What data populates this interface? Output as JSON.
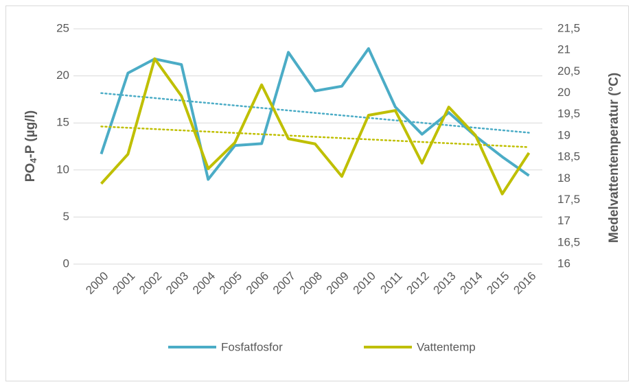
{
  "chart_data": {
    "type": "line",
    "y_label": {
      "main": "PO",
      "sub": "4",
      "rest": "-P (µg/l)"
    },
    "y2_label": "Medelvattentemperatur (°C)",
    "categories": [
      "2000",
      "2001",
      "2002",
      "2003",
      "2004",
      "2005",
      "2006",
      "2007",
      "2008",
      "2009",
      "2010",
      "2011",
      "2012",
      "2013",
      "2014",
      "2015",
      "2016"
    ],
    "series": [
      {
        "name": "Fosfatfosfor",
        "color": "#4bacc6",
        "axis": "y",
        "trendline": true,
        "values": [
          11.7,
          20.3,
          21.8,
          21.2,
          9.0,
          12.6,
          12.8,
          22.5,
          18.4,
          18.9,
          22.9,
          16.7,
          13.8,
          16.1,
          13.6,
          11.4,
          9.4
        ]
      },
      {
        "name": "Vattentemp",
        "color": "#bfbf00",
        "axis": "y2",
        "trendline": true,
        "values": [
          17.88,
          18.57,
          20.8,
          19.93,
          18.23,
          18.84,
          20.19,
          18.93,
          18.81,
          18.05,
          19.48,
          19.59,
          18.36,
          19.67,
          19.01,
          17.64,
          18.6
        ]
      }
    ],
    "ylim": [
      0,
      25
    ],
    "yticks": [
      0,
      5,
      10,
      15,
      20,
      25
    ],
    "y2lim": [
      16,
      21.5
    ],
    "y2ticks": [
      16,
      {
        "value": 16.5,
        "label": "16,5"
      },
      17,
      {
        "value": 17.5,
        "label": "17,5"
      },
      18,
      {
        "value": 18.5,
        "label": "18,5"
      },
      19,
      {
        "value": 19.5,
        "label": "19,5"
      },
      20,
      {
        "value": 20.5,
        "label": "20,5"
      },
      21,
      {
        "value": 21.5,
        "label": "21,5"
      }
    ],
    "grid": true,
    "legend": "bottom"
  }
}
